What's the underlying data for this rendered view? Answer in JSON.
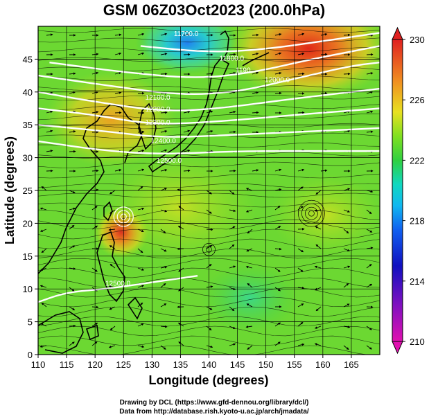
{
  "chart_data": {
    "type": "heatmap",
    "title": "GSM 06Z03Oct2023 (200.0hPa)",
    "xlabel": "Longitude (degrees)",
    "ylabel": "Latitude (degrees)",
    "xlim": [
      110,
      170
    ],
    "ylim": [
      0,
      50
    ],
    "xticks": [
      110,
      115,
      120,
      125,
      130,
      135,
      140,
      145,
      150,
      155,
      160,
      165
    ],
    "yticks": [
      0,
      5,
      10,
      15,
      20,
      25,
      30,
      35,
      40,
      45
    ],
    "grid": true,
    "colorbar": {
      "min": 210,
      "max": 230,
      "ticks": [
        210,
        214,
        218,
        222,
        226,
        230
      ],
      "colors": [
        "#e010b0",
        "#1010c0",
        "#1080ff",
        "#10d8d0",
        "#40d040",
        "#80e020",
        "#f0d020",
        "#f08020",
        "#e02020"
      ]
    },
    "contours": [
      {
        "level": "11800.0",
        "points": [
          [
            128,
            47
          ],
          [
            140,
            46
          ],
          [
            150,
            46.5
          ],
          [
            162,
            48
          ],
          [
            170,
            49
          ]
        ]
      },
      {
        "level": "11900.0",
        "points": [
          [
            112,
            44.5
          ],
          [
            125,
            43
          ],
          [
            138,
            42
          ],
          [
            148,
            43
          ],
          [
            158,
            45
          ],
          [
            170,
            47
          ]
        ]
      },
      {
        "level": "12000.0",
        "points": [
          [
            110,
            42.5
          ],
          [
            122,
            41
          ],
          [
            135,
            39.5
          ],
          [
            145,
            40
          ],
          [
            155,
            42
          ],
          [
            165,
            44
          ],
          [
            170,
            44.5
          ]
        ]
      },
      {
        "level": "12100.0",
        "points": [
          [
            110,
            40
          ],
          [
            120,
            38.5
          ],
          [
            132,
            37
          ],
          [
            142,
            37.5
          ],
          [
            155,
            39
          ],
          [
            170,
            40.5
          ]
        ]
      },
      {
        "level": "12200.0",
        "points": [
          [
            110,
            37.5
          ],
          [
            120,
            36.5
          ],
          [
            130,
            35
          ],
          [
            142,
            35.5
          ],
          [
            155,
            36.5
          ],
          [
            170,
            37.5
          ]
        ]
      },
      {
        "level": "12300.0",
        "points": [
          [
            110,
            35
          ],
          [
            122,
            34
          ],
          [
            132,
            33
          ],
          [
            145,
            33.5
          ],
          [
            158,
            34
          ],
          [
            170,
            34.5
          ]
        ]
      },
      {
        "level": "12400.0",
        "points": [
          [
            110,
            32.5
          ],
          [
            122,
            31
          ],
          [
            132,
            30.5
          ],
          [
            145,
            31
          ],
          [
            160,
            31
          ],
          [
            170,
            31
          ]
        ]
      },
      {
        "level": "12500.0",
        "points": [
          [
            110,
            8
          ],
          [
            115,
            9.5
          ],
          [
            122,
            10
          ],
          [
            130,
            11
          ],
          [
            138,
            12
          ]
        ]
      }
    ],
    "contour_labels": [
      {
        "text": "11700.0",
        "lon": 136,
        "lat": 48.5
      },
      {
        "text": "11800.0",
        "lon": 144,
        "lat": 44.8
      },
      {
        "text": "1190",
        "lon": 146,
        "lat": 43
      },
      {
        "text": "12000.0",
        "lon": 152,
        "lat": 41.5
      },
      {
        "text": "12100.0",
        "lon": 131,
        "lat": 38.8
      },
      {
        "text": "12200.0",
        "lon": 131,
        "lat": 37
      },
      {
        "text": "12300.0",
        "lon": 131,
        "lat": 35
      },
      {
        "text": "12400.0",
        "lon": 132,
        "lat": 32.2
      },
      {
        "text": "12500.0",
        "lon": 133,
        "lat": 29.2
      },
      {
        "text": "12500.0",
        "lon": 124,
        "lat": 10.5
      }
    ]
  },
  "credits": {
    "line1": "Drawing by DCL (https://www.gfd-dennou.org/library/dcl/)",
    "line2": "Data from http://database.rish.kyoto-u.ac.jp/arch/jmadata/"
  }
}
